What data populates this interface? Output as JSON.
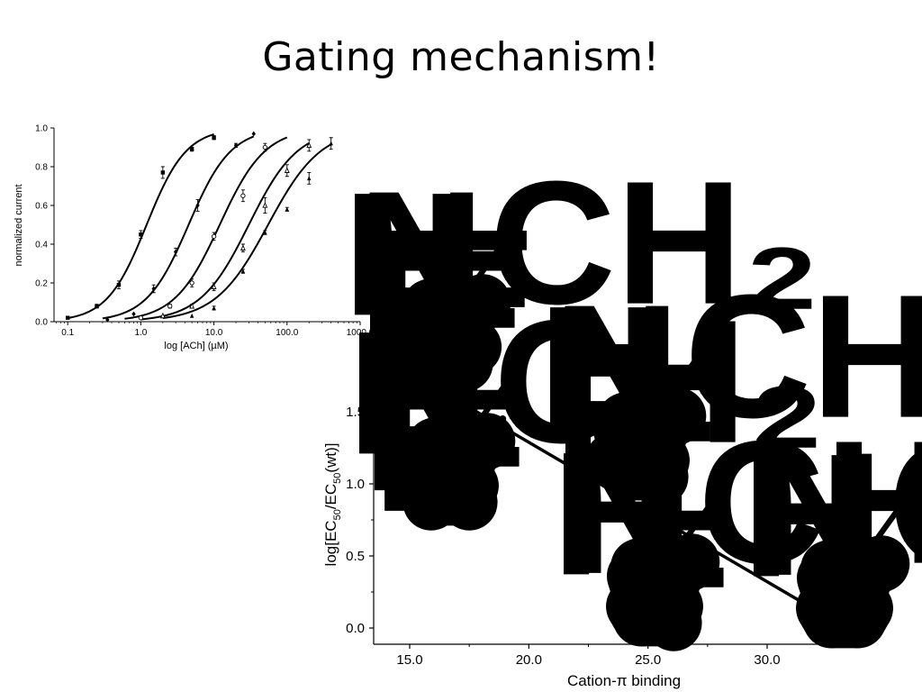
{
  "slide": {
    "title": "Gating mechanism!"
  },
  "chart_data": [
    {
      "type": "line",
      "xlabel": "log [ACh] (µM)",
      "ylabel": "normalized current",
      "xscale": "log",
      "xlim": [
        0.065,
        1000
      ],
      "ylim": [
        0,
        1.0
      ],
      "xticks": [
        0.1,
        1.0,
        10.0,
        100.0,
        1000.0
      ],
      "xtick_labels": [
        "0.1",
        "1.0",
        "10.0",
        "100.0",
        "1000.0"
      ],
      "yticks": [
        0,
        0.2,
        0.4,
        0.6,
        0.8,
        1.0
      ],
      "ytick_labels": [
        "0.0",
        "0.2",
        "0.4",
        "0.6",
        "0.8",
        "1.0"
      ],
      "grid": false,
      "series": [
        {
          "marker": "square",
          "ec50": 1.2,
          "hill": 1.6,
          "x_range": [
            0.1,
            10
          ],
          "x": [
            0.1,
            0.25,
            0.5,
            1.0,
            2.0,
            5.0,
            10.0
          ],
          "y": [
            0.02,
            0.08,
            0.19,
            0.45,
            0.77,
            0.89,
            0.95
          ],
          "err": [
            0,
            0.01,
            0.02,
            0.02,
            0.03,
            0.01,
            0.01
          ]
        },
        {
          "marker": "diamond",
          "ec50": 4.5,
          "hill": 1.5,
          "x_range": [
            0.3,
            35
          ],
          "x": [
            0.35,
            0.8,
            1.5,
            3.0,
            6.0,
            20.0,
            35.0
          ],
          "y": [
            0.01,
            0.04,
            0.17,
            0.36,
            0.6,
            0.91,
            0.97
          ],
          "err": [
            0,
            0,
            0.02,
            0.02,
            0.03,
            0.01,
            0
          ]
        },
        {
          "marker": "circle-open",
          "ec50": 12.0,
          "hill": 1.4,
          "x_range": [
            0.6,
            100
          ],
          "x": [
            1.0,
            2.5,
            5.0,
            10.0,
            25.0,
            50.0
          ],
          "y": [
            0.02,
            0.08,
            0.2,
            0.44,
            0.65,
            0.9
          ],
          "err": [
            0,
            0.01,
            0.02,
            0.02,
            0.03,
            0.02
          ]
        },
        {
          "marker": "triangle-open",
          "ec50": 30.0,
          "hill": 1.3,
          "x_range": [
            1.0,
            200
          ],
          "x": [
            2.0,
            5.0,
            10.0,
            25.0,
            50.0,
            100.0,
            200.0
          ],
          "y": [
            0.03,
            0.08,
            0.18,
            0.38,
            0.6,
            0.78,
            0.91
          ],
          "err": [
            0,
            0.01,
            0.02,
            0.02,
            0.04,
            0.03,
            0.03
          ]
        },
        {
          "marker": "triangle-filled",
          "ec50": 55.0,
          "hill": 1.2,
          "x_range": [
            2.0,
            400
          ],
          "x": [
            5.0,
            10.0,
            25.0,
            50.0,
            100.0,
            200.0,
            400.0
          ],
          "y": [
            0.03,
            0.07,
            0.26,
            0.46,
            0.58,
            0.74,
            0.92
          ],
          "err": [
            0,
            0.01,
            0.01,
            0.01,
            0.01,
            0.03,
            0.03
          ]
        }
      ]
    },
    {
      "type": "scatter",
      "xlabel": "Cation-π binding",
      "ylabel_parts": [
        "log[EC",
        "50",
        "/EC",
        "50",
        "(wt)]"
      ],
      "xlim": [
        14,
        33
      ],
      "ylim": [
        -0.05,
        1.85
      ],
      "xticks": [
        15.0,
        20.0,
        25.0,
        30.0
      ],
      "xtick_labels": [
        "15.0",
        "20.0",
        "25.0",
        "30.0"
      ],
      "yticks": [
        0.0,
        0.5,
        1.0,
        1.5
      ],
      "ytick_labels": [
        "0.0",
        "0.5",
        "1.0",
        "1.5"
      ],
      "grid": false,
      "points": [
        {
          "x": 14.5,
          "y": 1.73
        },
        {
          "x": 18.9,
          "y": 1.45
        },
        {
          "x": 23.3,
          "y": 1.03
        },
        {
          "x": 27.4,
          "y": 0.59
        },
        {
          "x": 32.6,
          "y": -0.01
        }
      ],
      "fit_line": {
        "x": [
          14.5,
          32.6
        ],
        "y": [
          1.82,
          0.07
        ]
      },
      "structure_labels": {
        "f4": {
          "substituents": [
            "F",
            "F",
            "F",
            "F"
          ],
          "nh": [
            "N",
            "H"
          ],
          "ch2": "CH₂"
        },
        "f3": {
          "substituents": [
            "F",
            "F",
            "F"
          ],
          "nh": [
            "N",
            "H"
          ],
          "ch2": "CH₂"
        },
        "f2": {
          "substituents": [
            "F",
            "F"
          ],
          "nh": [
            "N",
            "H"
          ],
          "ch2": "CH₂"
        },
        "f1": {
          "substituents": [
            "F"
          ],
          "nh": [
            "N",
            "H"
          ],
          "ch2": "CH₂"
        },
        "f0": {
          "substituents": [],
          "nh": [
            "N",
            "H"
          ],
          "ch2": "CH₂"
        }
      }
    }
  ]
}
